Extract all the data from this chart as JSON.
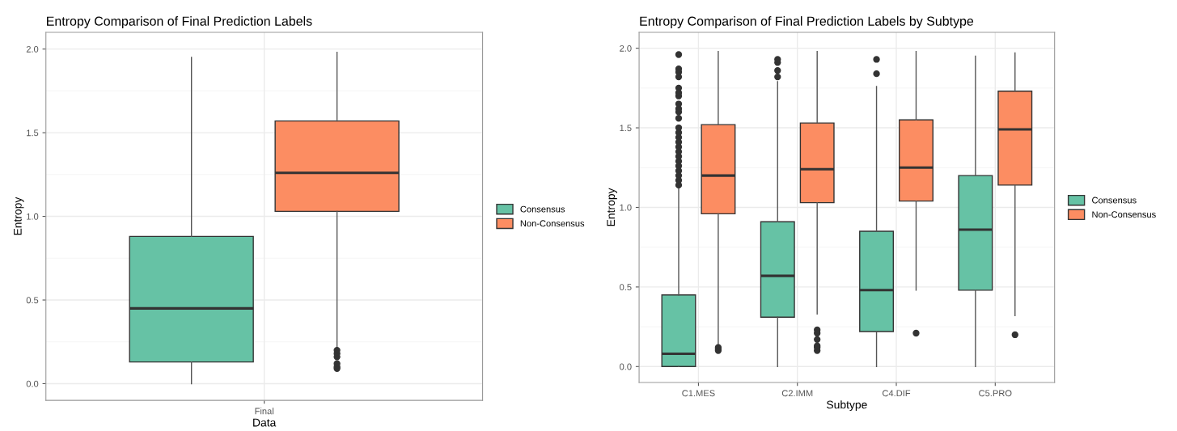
{
  "chart_data": [
    {
      "type": "box",
      "title": "Entropy Comparison of Final Prediction Labels",
      "xlabel": "Data",
      "ylabel": "Entropy",
      "categories": [
        "Final"
      ],
      "ylim": [
        -0.1,
        2.1
      ],
      "yticks": [
        {
          "value": 0,
          "label": "0.0"
        },
        {
          "value": 0.5,
          "label": "0.5"
        },
        {
          "value": 1,
          "label": "1.0"
        },
        {
          "value": 1.5,
          "label": "1.5"
        },
        {
          "value": 2,
          "label": "2.0"
        }
      ],
      "grid": true,
      "legend": "right",
      "marker": "circle",
      "series": [
        {
          "name": "Consensus",
          "color": "#66c2a5",
          "boxes": [
            {
              "low": 0,
              "q1": 0.13,
              "median": 0.45,
              "q3": 0.88,
              "high": 1.95
            }
          ]
        },
        {
          "name": "Non-Consensus",
          "color": "#fc8d62",
          "boxes": [
            {
              "low": 0.22,
              "q1": 1.03,
              "median": 1.26,
              "q3": 1.57,
              "high": 1.98,
              "outliers": [
                0.09,
                0.1,
                0.12,
                0.16,
                0.18,
                0.2
              ]
            }
          ]
        }
      ]
    },
    {
      "type": "box",
      "title": "Entropy Comparison of Final Prediction Labels by Subtype",
      "xlabel": "Subtype",
      "ylabel": "Entropy",
      "categories": [
        "C1.MES",
        "C2.IMM",
        "C4.DIF",
        "C5.PRO"
      ],
      "ylim": [
        -0.1,
        2.1
      ],
      "yticks": [
        {
          "value": 0,
          "label": "0.0"
        },
        {
          "value": 0.5,
          "label": "0.5"
        },
        {
          "value": 1,
          "label": "1.0"
        },
        {
          "value": 1.5,
          "label": "1.5"
        },
        {
          "value": 2,
          "label": "2.0"
        }
      ],
      "grid": true,
      "legend": "right",
      "marker": "circle",
      "series": [
        {
          "name": "Consensus",
          "color": "#66c2a5",
          "boxes": [
            {
              "low": 0,
              "q1": 0,
              "median": 0.08,
              "q3": 0.45,
              "high": 1.12,
              "outliers": [
                1.14,
                1.17,
                1.2,
                1.23,
                1.26,
                1.29,
                1.32,
                1.35,
                1.38,
                1.41,
                1.44,
                1.47,
                1.5,
                1.56,
                1.6,
                1.62,
                1.65,
                1.7,
                1.72,
                1.75,
                1.82,
                1.85,
                1.87,
                1.96
              ]
            },
            {
              "low": 0,
              "q1": 0.31,
              "median": 0.57,
              "q3": 0.91,
              "high": 1.79,
              "outliers": [
                1.82,
                1.86,
                1.91,
                1.93
              ]
            },
            {
              "low": 0,
              "q1": 0.22,
              "median": 0.48,
              "q3": 0.85,
              "high": 1.76,
              "outliers": [
                1.84,
                1.93
              ]
            },
            {
              "low": 0,
              "q1": 0.48,
              "median": 0.86,
              "q3": 1.2,
              "high": 1.95
            }
          ]
        },
        {
          "name": "Non-Consensus",
          "color": "#fc8d62",
          "boxes": [
            {
              "low": 0.13,
              "q1": 0.96,
              "median": 1.2,
              "q3": 1.52,
              "high": 1.98,
              "outliers": [
                0.1,
                0.11,
                0.12
              ]
            },
            {
              "low": 0.33,
              "q1": 1.03,
              "median": 1.24,
              "q3": 1.53,
              "high": 1.98,
              "outliers": [
                0.1,
                0.12,
                0.13,
                0.17,
                0.21,
                0.23
              ]
            },
            {
              "low": 0.48,
              "q1": 1.04,
              "median": 1.25,
              "q3": 1.55,
              "high": 1.98,
              "outliers": [
                0.21
              ]
            },
            {
              "low": 0.32,
              "q1": 1.14,
              "median": 1.49,
              "q3": 1.73,
              "high": 1.97,
              "outliers": [
                0.2
              ]
            }
          ]
        }
      ]
    }
  ]
}
